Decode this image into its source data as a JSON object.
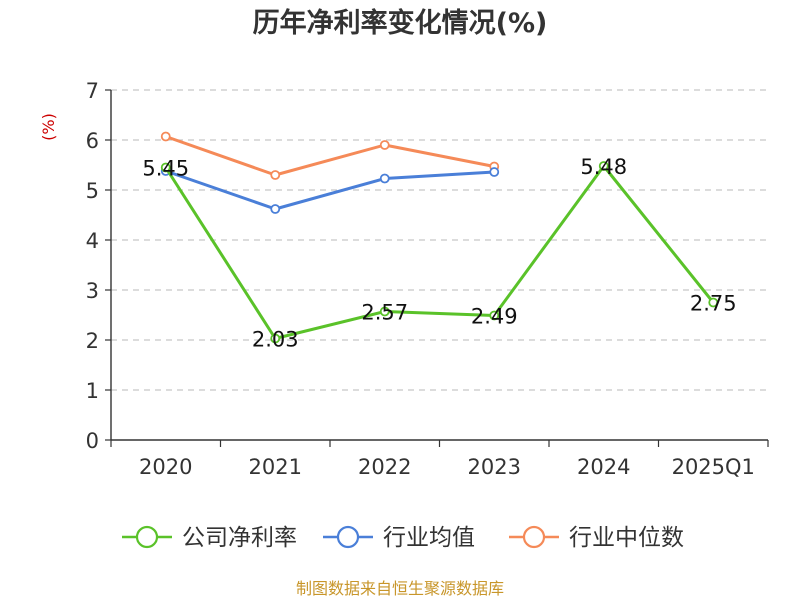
{
  "chart_data": {
    "type": "line",
    "title": "历年净利率变化情况(%)",
    "ylabel": "(%)",
    "categories": [
      "2020",
      "2021",
      "2022",
      "2023",
      "2024",
      "2025Q1"
    ],
    "ylim": [
      0,
      7
    ],
    "yticks": [
      0,
      1,
      2,
      3,
      4,
      5,
      6,
      7
    ],
    "grid": true,
    "legend_position": "bottom",
    "series": [
      {
        "name": "公司净利率",
        "color": "#5ac229",
        "values": [
          5.45,
          2.03,
          2.57,
          2.49,
          5.48,
          2.75
        ],
        "labels": [
          "5.45",
          "2.03",
          "2.57",
          "2.49",
          "5.48",
          "2.75"
        ]
      },
      {
        "name": "行业均值",
        "color": "#4a7fd8",
        "values": [
          5.38,
          4.62,
          5.23,
          5.36,
          null,
          null
        ]
      },
      {
        "name": "行业中位数",
        "color": "#f58a58",
        "values": [
          6.07,
          5.3,
          5.9,
          5.47,
          null,
          null
        ]
      }
    ]
  },
  "footer": {
    "source": "制图数据来自恒生聚源数据库"
  }
}
